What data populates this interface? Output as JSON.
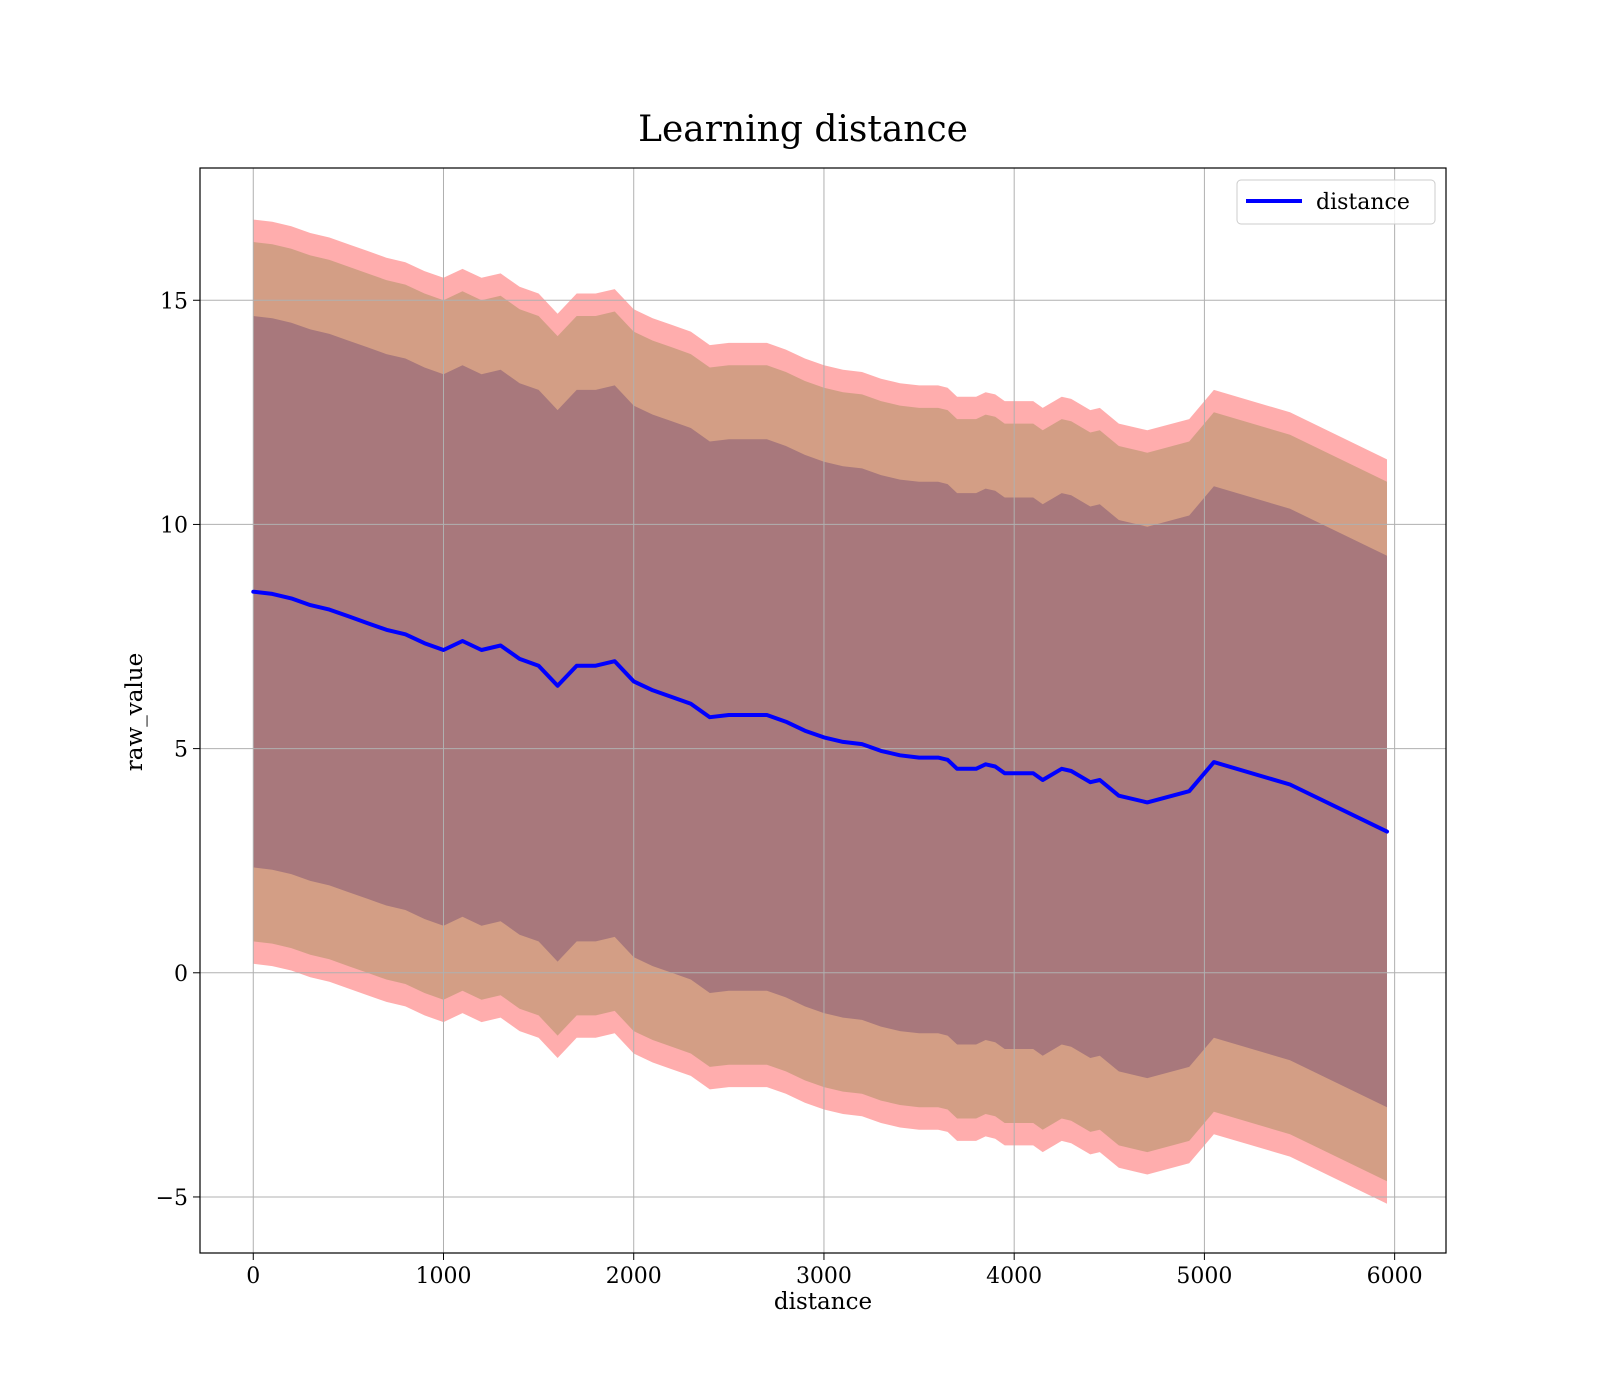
{
  "chart_data": {
    "type": "area",
    "title": "Learning distance",
    "xlabel": "distance",
    "ylabel": "raw_value",
    "xlim": [
      -280,
      6270
    ],
    "ylim": [
      -6.25,
      17.95
    ],
    "x_ticks": [
      0,
      1000,
      2000,
      3000,
      4000,
      5000,
      6000
    ],
    "y_ticks": [
      -5,
      0,
      5,
      10,
      15
    ],
    "x_tick_labels": [
      "0",
      "1000",
      "2000",
      "3000",
      "4000",
      "5000",
      "6000"
    ],
    "y_tick_labels": [
      "−5",
      "0",
      "5",
      "10",
      "15"
    ],
    "grid": true,
    "legend_position": "top-right",
    "colors": {
      "line": "#0000ff",
      "outer_band": "#ff0000",
      "middle_band": "#c49a78",
      "inner_band": "#a0717a"
    },
    "series": [
      {
        "name": "distance",
        "x": [
          0,
          100,
          200,
          300,
          400,
          500,
          600,
          700,
          800,
          900,
          1000,
          1100,
          1200,
          1300,
          1400,
          1500,
          1600,
          1700,
          1800,
          1900,
          2000,
          2100,
          2200,
          2300,
          2400,
          2500,
          2600,
          2700,
          2800,
          2900,
          3000,
          3100,
          3200,
          3300,
          3400,
          3500,
          3600,
          3650,
          3700,
          3800,
          3850,
          3900,
          3950,
          4000,
          4100,
          4150,
          4250,
          4300,
          4400,
          4450,
          4550,
          4700,
          4920,
          5050,
          5450,
          5960
        ],
        "y": [
          8.5,
          8.45,
          8.35,
          8.2,
          8.1,
          7.95,
          7.8,
          7.65,
          7.55,
          7.35,
          7.2,
          7.4,
          7.2,
          7.3,
          7.0,
          6.85,
          6.4,
          6.85,
          6.85,
          6.95,
          6.5,
          6.3,
          6.15,
          6.0,
          5.7,
          5.75,
          5.75,
          5.75,
          5.6,
          5.4,
          5.25,
          5.15,
          5.1,
          4.95,
          4.85,
          4.8,
          4.8,
          4.75,
          4.55,
          4.55,
          4.65,
          4.6,
          4.45,
          4.45,
          4.45,
          4.3,
          4.55,
          4.5,
          4.25,
          4.3,
          3.95,
          3.8,
          4.05,
          4.7,
          4.2,
          3.15
        ]
      }
    ],
    "bands": [
      {
        "upper_offset": 8.3,
        "lower_offset": 8.3
      },
      {
        "upper_offset": 7.8,
        "lower_offset": 7.8
      },
      {
        "upper_offset": 6.15,
        "lower_offset": 6.15
      }
    ]
  }
}
